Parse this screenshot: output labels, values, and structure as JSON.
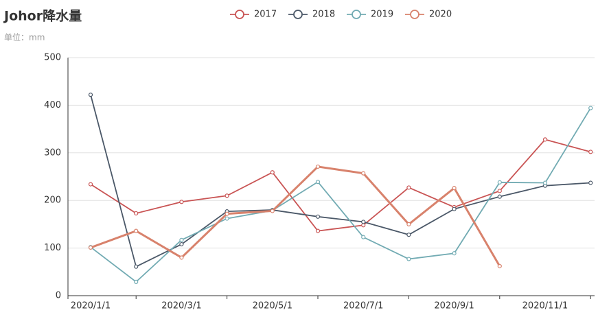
{
  "chart_data": {
    "type": "line",
    "title": "Johor降水量",
    "subtitle": "单位：mm",
    "categories": [
      "2020/1/1",
      null,
      "2020/3/1",
      null,
      "2020/5/1",
      null,
      "2020/7/1",
      null,
      "2020/9/1",
      null,
      "2020/11/1",
      null
    ],
    "series": [
      {
        "name": "2017",
        "color": "#c95454",
        "values": [
          234,
          173,
          197,
          210,
          259,
          136,
          148,
          227,
          186,
          220,
          328,
          302
        ]
      },
      {
        "name": "2018",
        "color": "#4b5868",
        "values": [
          422,
          61,
          108,
          177,
          180,
          166,
          155,
          128,
          182,
          208,
          231,
          237
        ]
      },
      {
        "name": "2019",
        "color": "#72abb3",
        "values": [
          102,
          29,
          117,
          162,
          179,
          239,
          123,
          77,
          89,
          238,
          237,
          394
        ]
      },
      {
        "name": "2020",
        "color": "#d8826c",
        "values": [
          101,
          136,
          80,
          172,
          178,
          271,
          257,
          150,
          226,
          62,
          null,
          null
        ]
      }
    ],
    "ylim": [
      0,
      500
    ],
    "yticks": [
      0,
      100,
      200,
      300,
      400,
      500
    ],
    "grid": true
  }
}
